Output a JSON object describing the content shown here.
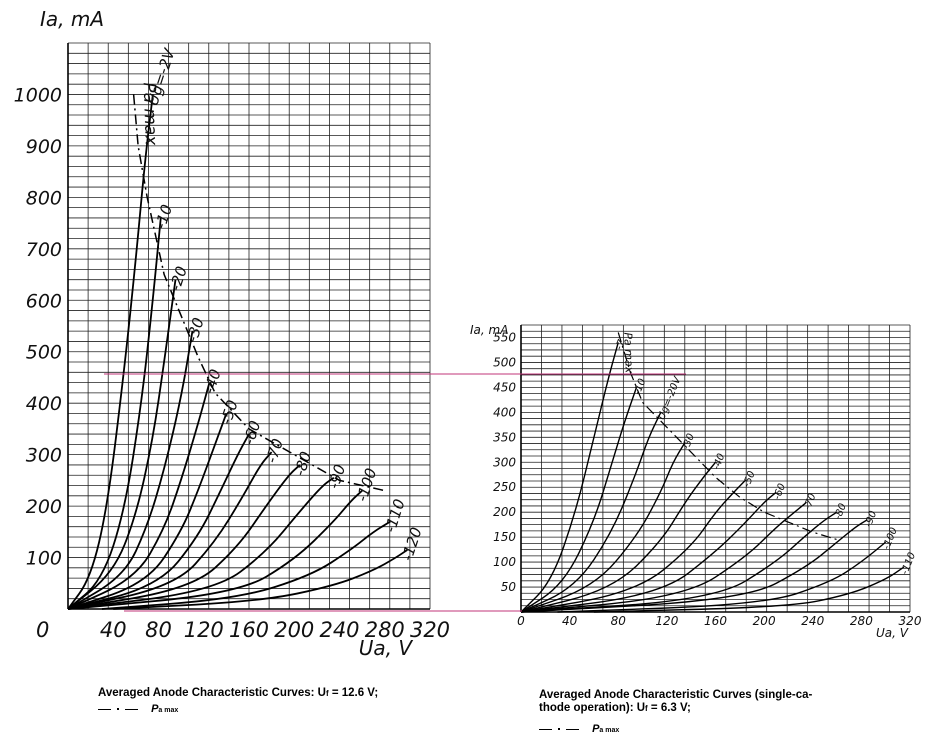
{
  "chart_data": [
    {
      "type": "line",
      "xlabel": "Ua, V",
      "ylabel": "Ia, mA",
      "xlim": [
        0,
        320
      ],
      "ylim": [
        0,
        1100
      ],
      "x_ticks": [
        "0",
        "40",
        "80",
        "120",
        "160",
        "200",
        "240",
        "280",
        "320"
      ],
      "y_ticks": [
        "100",
        "200",
        "300",
        "400",
        "500",
        "600",
        "700",
        "800",
        "900",
        "1000"
      ],
      "grid": true,
      "pmax_label": "Pa max",
      "series": [
        {
          "name": "Ug=-2V",
          "points": [
            [
              0,
              0
            ],
            [
              20,
              60
            ],
            [
              35,
              200
            ],
            [
              50,
              470
            ],
            [
              60,
              680
            ],
            [
              68,
              870
            ],
            [
              75,
              1000
            ]
          ]
        },
        {
          "name": "-10",
          "points": [
            [
              0,
              0
            ],
            [
              30,
              55
            ],
            [
              50,
              190
            ],
            [
              65,
              400
            ],
            [
              75,
              600
            ],
            [
              82,
              760
            ]
          ]
        },
        {
          "name": "-20",
          "points": [
            [
              0,
              0
            ],
            [
              40,
              70
            ],
            [
              60,
              180
            ],
            [
              75,
              330
            ],
            [
              85,
              480
            ],
            [
              95,
              640
            ]
          ]
        },
        {
          "name": "-30",
          "points": [
            [
              0,
              0
            ],
            [
              50,
              65
            ],
            [
              70,
              160
            ],
            [
              85,
              270
            ],
            [
              100,
              410
            ],
            [
              110,
              540
            ]
          ]
        },
        {
          "name": "-40",
          "points": [
            [
              0,
              0
            ],
            [
              60,
              60
            ],
            [
              85,
              155
            ],
            [
              100,
              250
            ],
            [
              115,
              360
            ],
            [
              125,
              440
            ]
          ]
        },
        {
          "name": "-50",
          "points": [
            [
              0,
              0
            ],
            [
              70,
              50
            ],
            [
              100,
              150
            ],
            [
              115,
              230
            ],
            [
              130,
              320
            ],
            [
              140,
              380
            ]
          ]
        },
        {
          "name": "-60",
          "points": [
            [
              0,
              0
            ],
            [
              80,
              45
            ],
            [
              115,
              140
            ],
            [
              135,
              230
            ],
            [
              150,
              300
            ],
            [
              160,
              340
            ]
          ]
        },
        {
          "name": "-70",
          "points": [
            [
              0,
              0
            ],
            [
              95,
              45
            ],
            [
              130,
              130
            ],
            [
              155,
              220
            ],
            [
              170,
              280
            ],
            [
              180,
              305
            ]
          ]
        },
        {
          "name": "-80",
          "points": [
            [
              0,
              0
            ],
            [
              110,
              40
            ],
            [
              150,
              120
            ],
            [
              175,
              200
            ],
            [
              195,
              260
            ],
            [
              205,
              280
            ]
          ]
        },
        {
          "name": "-90",
          "points": [
            [
              0,
              0
            ],
            [
              130,
              35
            ],
            [
              175,
              110
            ],
            [
              205,
              190
            ],
            [
              225,
              240
            ],
            [
              235,
              255
            ]
          ]
        },
        {
          "name": "-100",
          "points": [
            [
              0,
              0
            ],
            [
              150,
              30
            ],
            [
              200,
              95
            ],
            [
              235,
              170
            ],
            [
              250,
              210
            ],
            [
              260,
              230
            ]
          ]
        },
        {
          "name": "-110",
          "points": [
            [
              30,
              0
            ],
            [
              150,
              20
            ],
            [
              215,
              65
            ],
            [
              250,
              115
            ],
            [
              270,
              150
            ],
            [
              285,
              170
            ]
          ]
        },
        {
          "name": "-120",
          "points": [
            [
              40,
              0
            ],
            [
              170,
              15
            ],
            [
              235,
              45
            ],
            [
              270,
              75
            ],
            [
              290,
              100
            ],
            [
              300,
              115
            ]
          ]
        }
      ],
      "pmax_curve": [
        [
          58,
          1000
        ],
        [
          62,
          900
        ],
        [
          70,
          800
        ],
        [
          85,
          650
        ],
        [
          100,
          570
        ],
        [
          115,
          490
        ],
        [
          130,
          420
        ],
        [
          160,
          350
        ],
        [
          200,
          300
        ],
        [
          240,
          250
        ],
        [
          260,
          240
        ],
        [
          280,
          230
        ]
      ]
    },
    {
      "type": "line",
      "xlabel": "Ua, V",
      "ylabel": "Ia, mA",
      "xlim": [
        0,
        320
      ],
      "ylim": [
        0,
        575
      ],
      "x_ticks": [
        "0",
        "40",
        "80",
        "120",
        "160",
        "200",
        "240",
        "280",
        "320"
      ],
      "y_ticks": [
        "50",
        "100",
        "150",
        "200",
        "250",
        "300",
        "350",
        "400",
        "450",
        "500",
        "550"
      ],
      "grid": true,
      "pmax_label": "Pa max",
      "series": [
        {
          "name": "-7",
          "points": [
            [
              0,
              0
            ],
            [
              25,
              60
            ],
            [
              45,
              200
            ],
            [
              60,
              350
            ],
            [
              72,
              470
            ],
            [
              80,
              540
            ]
          ]
        },
        {
          "name": "-10",
          "points": [
            [
              0,
              0
            ],
            [
              35,
              55
            ],
            [
              60,
              180
            ],
            [
              75,
              300
            ],
            [
              85,
              380
            ],
            [
              95,
              450
            ]
          ]
        },
        {
          "name": "Ug=-20V",
          "points": [
            [
              0,
              0
            ],
            [
              45,
              50
            ],
            [
              75,
              160
            ],
            [
              95,
              280
            ],
            [
              105,
              350
            ],
            [
              115,
              400
            ]
          ]
        },
        {
          "name": "-30",
          "points": [
            [
              0,
              0
            ],
            [
              60,
              50
            ],
            [
              95,
              150
            ],
            [
              115,
              240
            ],
            [
              125,
              300
            ],
            [
              135,
              340
            ]
          ]
        },
        {
          "name": "-40",
          "points": [
            [
              0,
              0
            ],
            [
              75,
              45
            ],
            [
              115,
              140
            ],
            [
              135,
              220
            ],
            [
              150,
              270
            ],
            [
              160,
              300
            ]
          ]
        },
        {
          "name": "-50",
          "points": [
            [
              0,
              0
            ],
            [
              95,
              40
            ],
            [
              140,
              130
            ],
            [
              160,
              200
            ],
            [
              175,
              240
            ],
            [
              185,
              265
            ]
          ]
        },
        {
          "name": "-60",
          "points": [
            [
              0,
              0
            ],
            [
              115,
              35
            ],
            [
              160,
              120
            ],
            [
              185,
              180
            ],
            [
              200,
              220
            ],
            [
              210,
              240
            ]
          ]
        },
        {
          "name": "-70",
          "points": [
            [
              0,
              0
            ],
            [
              135,
              30
            ],
            [
              185,
              110
            ],
            [
              210,
              170
            ],
            [
              225,
              200
            ],
            [
              235,
              220
            ]
          ]
        },
        {
          "name": "-80",
          "points": [
            [
              0,
              0
            ],
            [
              160,
              25
            ],
            [
              210,
              100
            ],
            [
              235,
              155
            ],
            [
              250,
              185
            ],
            [
              260,
              200
            ]
          ]
        },
        {
          "name": "-90",
          "points": [
            [
              0,
              0
            ],
            [
              185,
              25
            ],
            [
              235,
              90
            ],
            [
              260,
              140
            ],
            [
              275,
              170
            ],
            [
              285,
              185
            ]
          ]
        },
        {
          "name": "-100",
          "points": [
            [
              30,
              0
            ],
            [
              200,
              15
            ],
            [
              255,
              60
            ],
            [
              280,
              100
            ],
            [
              300,
              140
            ]
          ]
        },
        {
          "name": "-110",
          "points": [
            [
              60,
              0
            ],
            [
              220,
              10
            ],
            [
              270,
              35
            ],
            [
              300,
              65
            ],
            [
              315,
              90
            ]
          ]
        }
      ],
      "pmax_curve": [
        [
          80,
          560
        ],
        [
          90,
          480
        ],
        [
          100,
          420
        ],
        [
          120,
          370
        ],
        [
          140,
          320
        ],
        [
          160,
          270
        ],
        [
          180,
          230
        ],
        [
          200,
          200
        ],
        [
          220,
          180
        ],
        [
          240,
          160
        ],
        [
          260,
          145
        ]
      ]
    }
  ],
  "captions": {
    "left_title": "Averaged Anode Characteristic Curves: U",
    "left_title_sub": "f",
    "left_title_tail": " = 12.6 V;",
    "right_title_line1": "Averaged Anode Characteristic Curves (single-ca-",
    "right_title_line2a": "thode operation): U",
    "right_title_sub": "f",
    "right_title_line2b": " = 6.3 V;",
    "legend_symbol": "P",
    "legend_sub": "a max"
  },
  "colors": {
    "ink": "#000000",
    "grid": "#222222",
    "highlight": "#c0347a"
  }
}
